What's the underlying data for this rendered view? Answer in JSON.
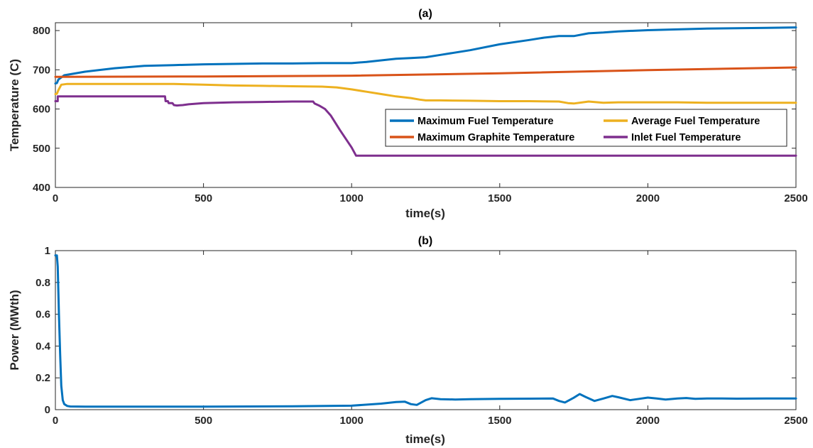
{
  "chart_data": [
    {
      "type": "line",
      "title": "(a)",
      "xlabel": "time(s)",
      "ylabel": "Temperature (C)",
      "xlim": [
        0,
        2500
      ],
      "ylim": [
        400,
        820
      ],
      "xticks": [
        0,
        500,
        1000,
        1500,
        2000,
        2500
      ],
      "yticks": [
        400,
        500,
        600,
        700,
        800
      ],
      "xtick_labels": [
        "0",
        "500",
        "1000",
        "1500",
        "2000",
        "2500"
      ],
      "ytick_labels": [
        "400",
        "500",
        "600",
        "700",
        "800"
      ],
      "grid": false,
      "legend": "inside lower-right, 2 columns",
      "series": [
        {
          "name": "Maximum Fuel Temperature",
          "color": "#0072BD",
          "x": [
            0,
            5,
            10,
            30,
            100,
            200,
            300,
            400,
            500,
            600,
            700,
            800,
            900,
            1000,
            1050,
            1100,
            1150,
            1200,
            1250,
            1300,
            1400,
            1500,
            1600,
            1650,
            1700,
            1750,
            1800,
            1850,
            1900,
            2000,
            2100,
            2200,
            2300,
            2400,
            2500
          ],
          "y": [
            665,
            666,
            675,
            686,
            695,
            704,
            710,
            712,
            714,
            715,
            716,
            716,
            717,
            717,
            720,
            724,
            728,
            730,
            732,
            738,
            750,
            765,
            776,
            782,
            786,
            786,
            793,
            795,
            798,
            801,
            803,
            805,
            806,
            807,
            808
          ]
        },
        {
          "name": "Maximum Graphite Temperature",
          "color": "#D95319",
          "x": [
            0,
            500,
            1000,
            1500,
            2000,
            2500
          ],
          "y": [
            682,
            683,
            685,
            691,
            699,
            706
          ]
        },
        {
          "name": "Average Fuel Temperature",
          "color": "#EDB120",
          "x": [
            0,
            5,
            10,
            20,
            40,
            100,
            200,
            300,
            400,
            500,
            600,
            700,
            800,
            900,
            950,
            1000,
            1050,
            1100,
            1150,
            1200,
            1230,
            1250,
            1300,
            1400,
            1500,
            1600,
            1700,
            1730,
            1750,
            1780,
            1800,
            1850,
            1900,
            2000,
            2100,
            2200,
            2300,
            2400,
            2500
          ],
          "y": [
            638,
            639,
            648,
            662,
            664,
            664,
            664,
            664,
            664,
            662,
            660,
            659,
            658,
            657,
            655,
            650,
            644,
            638,
            632,
            628,
            624,
            622,
            622,
            621,
            620,
            620,
            619,
            615,
            614,
            617,
            619,
            616,
            617,
            617,
            617,
            616,
            616,
            616,
            616
          ]
        },
        {
          "name": "Inlet Fuel Temperature",
          "color": "#7E2F8E",
          "x": [
            0,
            8,
            8,
            370,
            372,
            380,
            382,
            395,
            400,
            410,
            430,
            450,
            500,
            600,
            700,
            800,
            870,
            875,
            890,
            910,
            930,
            960,
            1000,
            1015,
            2500
          ],
          "y": [
            620,
            620,
            632,
            632,
            620,
            620,
            615,
            615,
            610,
            609,
            610,
            612,
            615,
            617,
            618,
            619,
            619,
            614,
            609,
            600,
            583,
            547,
            502,
            481,
            481
          ]
        }
      ]
    },
    {
      "type": "line",
      "title": "(b)",
      "xlabel": "time(s)",
      "ylabel": "Power (MWth)",
      "xlim": [
        0,
        2500
      ],
      "ylim": [
        0,
        1
      ],
      "xticks": [
        0,
        500,
        1000,
        1500,
        2000,
        2500
      ],
      "yticks": [
        0,
        0.2,
        0.4,
        0.6,
        0.8,
        1
      ],
      "xtick_labels": [
        "0",
        "500",
        "1000",
        "1500",
        "2000",
        "2500"
      ],
      "ytick_labels": [
        "0",
        "0.2",
        "0.4",
        "0.6",
        "0.8",
        "1"
      ],
      "grid": false,
      "series": [
        {
          "color": "#0072BD",
          "x": [
            0,
            5,
            8,
            12,
            16,
            20,
            25,
            30,
            40,
            50,
            100,
            500,
            800,
            1000,
            1100,
            1150,
            1180,
            1200,
            1220,
            1250,
            1270,
            1300,
            1350,
            1400,
            1500,
            1600,
            1680,
            1700,
            1720,
            1750,
            1770,
            1790,
            1820,
            1850,
            1880,
            1900,
            1940,
            1970,
            2000,
            2030,
            2060,
            2100,
            2130,
            2160,
            2200,
            2250,
            2300,
            2400,
            2500
          ],
          "y": [
            0.97,
            0.97,
            0.9,
            0.6,
            0.35,
            0.15,
            0.06,
            0.035,
            0.023,
            0.02,
            0.019,
            0.019,
            0.021,
            0.025,
            0.038,
            0.048,
            0.05,
            0.035,
            0.03,
            0.06,
            0.072,
            0.066,
            0.064,
            0.066,
            0.068,
            0.069,
            0.07,
            0.055,
            0.045,
            0.075,
            0.098,
            0.08,
            0.055,
            0.07,
            0.086,
            0.078,
            0.06,
            0.068,
            0.076,
            0.07,
            0.064,
            0.07,
            0.073,
            0.068,
            0.07,
            0.07,
            0.069,
            0.07,
            0.07
          ]
        }
      ]
    }
  ]
}
